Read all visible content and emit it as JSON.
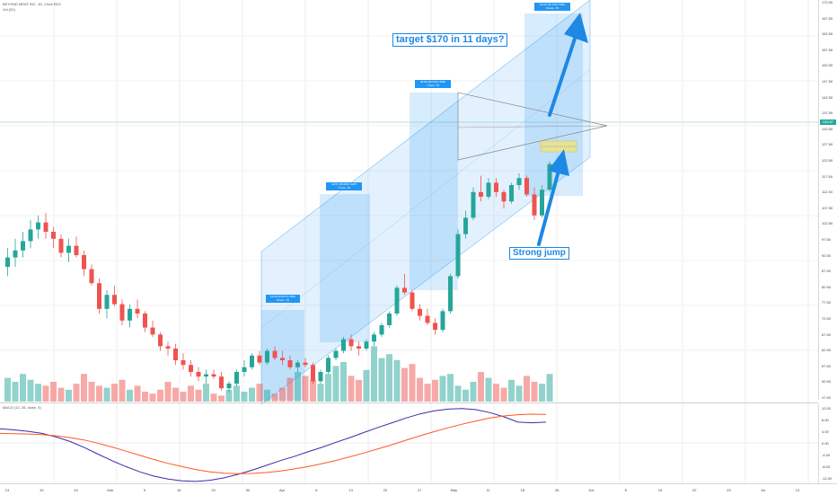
{
  "header": {
    "symbol_line": "BEYOND MEAT INC, 1D, Cboe BZX",
    "volume_line": "Vol (20)",
    "macd_line": "MACD (12, 26, close, 9)"
  },
  "annotations": {
    "target": "target $170 in 11 days?",
    "jump": "Strong jump"
  },
  "measure_labels": [
    {
      "line1": "18.52 (44.87%) 1852",
      "line2": "8 bars, 7D"
    },
    {
      "line1": "42.87 (66.28%) 4287",
      "line2": "7 bars, 7D"
    },
    {
      "line1": "36.80 (46.04%) 3680",
      "line2": "7 bars, 7D"
    },
    {
      "line1": "52.92 (46.13%) 5292",
      "line2": "8 bars, 7D"
    }
  ],
  "price_axis": [
    "172.00",
    "167.50",
    "162.50",
    "157.50",
    "152.50",
    "147.50",
    "142.50",
    "137.50",
    "132.50",
    "127.50",
    "122.50",
    "117.50",
    "112.50",
    "107.50",
    "102.50",
    "97.50",
    "92.50",
    "87.50",
    "82.50",
    "77.50",
    "72.50",
    "67.50",
    "62.50",
    "57.50",
    "52.50",
    "47.50"
  ],
  "current_price": "136.87",
  "macd_axis": [
    "12.00",
    "8.00",
    "4.00",
    "0.00",
    "-4.00",
    "-8.00",
    "-12.00"
  ],
  "time_axis": [
    "13",
    "19",
    "24",
    "Mar",
    "9",
    "16",
    "23",
    "30",
    "Apr",
    "6",
    "13",
    "20",
    "27",
    "May",
    "11",
    "18",
    "26",
    "Jun",
    "8",
    "15",
    "22",
    "29",
    "Jul",
    "13"
  ],
  "colors": {
    "up": "#26a69a",
    "down": "#ef5350",
    "channel": "#2196f3",
    "macd": "#3f2aa8",
    "signal": "#ff5722"
  },
  "candles": [
    [
      80,
      88,
      76,
      84
    ],
    [
      84,
      92,
      80,
      87
    ],
    [
      87,
      95,
      84,
      91
    ],
    [
      91,
      100,
      88,
      96
    ],
    [
      96,
      102,
      92,
      99
    ],
    [
      99,
      103,
      92,
      95
    ],
    [
      95,
      97,
      88,
      92
    ],
    [
      92,
      94,
      84,
      86
    ],
    [
      86,
      92,
      82,
      89
    ],
    [
      89,
      93,
      84,
      85
    ],
    [
      85,
      87,
      76,
      79
    ],
    [
      79,
      81,
      72,
      73
    ],
    [
      73,
      75,
      60,
      62
    ],
    [
      62,
      70,
      58,
      68
    ],
    [
      68,
      72,
      63,
      64
    ],
    [
      64,
      66,
      55,
      57
    ],
    [
      57,
      64,
      54,
      62
    ],
    [
      62,
      66,
      58,
      60
    ],
    [
      60,
      61,
      52,
      54
    ],
    [
      54,
      57,
      50,
      51
    ],
    [
      51,
      52,
      44,
      46
    ],
    [
      46,
      48,
      42,
      45
    ],
    [
      45,
      47,
      38,
      40
    ],
    [
      40,
      43,
      36,
      38
    ],
    [
      38,
      40,
      33,
      35
    ],
    [
      35,
      37,
      31,
      33
    ],
    [
      33,
      36,
      30,
      34
    ],
    [
      34,
      36,
      32,
      33
    ],
    [
      33,
      35,
      27,
      28
    ],
    [
      28,
      31,
      26,
      30
    ],
    [
      30,
      36,
      29,
      35
    ],
    [
      35,
      40,
      33,
      37
    ],
    [
      37,
      43,
      36,
      42
    ],
    [
      42,
      44,
      38,
      39
    ],
    [
      39,
      45,
      38,
      44
    ],
    [
      44,
      46,
      40,
      41
    ],
    [
      41,
      44,
      38,
      40
    ],
    [
      40,
      42,
      36,
      37
    ],
    [
      37,
      40,
      35,
      39
    ],
    [
      39,
      41,
      37,
      38
    ],
    [
      38,
      39,
      30,
      31
    ],
    [
      31,
      36,
      30,
      35
    ],
    [
      35,
      42,
      34,
      41
    ],
    [
      41,
      45,
      40,
      44
    ],
    [
      44,
      50,
      43,
      49
    ],
    [
      49,
      51,
      44,
      46
    ],
    [
      46,
      48,
      42,
      45
    ],
    [
      45,
      49,
      44,
      48
    ],
    [
      48,
      52,
      46,
      51
    ],
    [
      51,
      56,
      50,
      55
    ],
    [
      55,
      61,
      54,
      60
    ],
    [
      60,
      72,
      59,
      71
    ],
    [
      71,
      77,
      68,
      69
    ],
    [
      69,
      70,
      61,
      62
    ],
    [
      62,
      64,
      57,
      59
    ],
    [
      59,
      62,
      55,
      56
    ],
    [
      56,
      58,
      51,
      53
    ],
    [
      53,
      62,
      52,
      61
    ],
    [
      61,
      77,
      60,
      76
    ],
    [
      76,
      96,
      75,
      94
    ],
    [
      94,
      104,
      92,
      101
    ],
    [
      101,
      114,
      100,
      112
    ],
    [
      112,
      119,
      108,
      110
    ],
    [
      110,
      118,
      109,
      116
    ],
    [
      116,
      118,
      110,
      112
    ],
    [
      112,
      113,
      105,
      108
    ],
    [
      108,
      116,
      107,
      115
    ],
    [
      115,
      120,
      113,
      118
    ],
    [
      118,
      119,
      110,
      111
    ],
    [
      111,
      114,
      100,
      102
    ],
    [
      102,
      115,
      101,
      113
    ],
    [
      113,
      125,
      112,
      124
    ]
  ],
  "volumes": [
    12,
    10,
    14,
    11,
    9,
    8,
    10,
    7,
    6,
    9,
    14,
    10,
    8,
    7,
    9,
    11,
    6,
    8,
    5,
    4,
    6,
    10,
    7,
    5,
    8,
    6,
    9,
    4,
    3,
    6,
    8,
    5,
    7,
    9,
    6,
    4,
    7,
    12,
    15,
    13,
    11,
    9,
    14,
    18,
    20,
    13,
    11,
    16,
    28,
    22,
    24,
    21,
    17,
    19,
    12,
    9,
    11,
    13,
    14,
    8,
    6,
    10,
    15,
    12,
    9,
    7,
    11,
    8,
    13,
    10,
    9,
    14
  ],
  "macd": [
    4.8,
    4.4,
    3.9,
    3.2,
    2.0,
    0.5,
    -1.5,
    -3.8,
    -6.0,
    -8.0,
    -9.8,
    -11.2,
    -12.2,
    -12.8,
    -13.0,
    -12.6,
    -11.8,
    -10.6,
    -9.2,
    -7.6,
    -6.0,
    -4.6,
    -3.0,
    -1.5,
    0.2,
    1.8,
    3.5,
    5.2,
    6.8,
    8.4,
    9.8,
    10.8,
    11.4,
    11.6,
    11.2,
    10.2,
    8.8,
    7.0,
    6.8,
    7.0
  ],
  "signal": [
    3.2,
    3.1,
    3.0,
    2.8,
    2.4,
    1.8,
    1.0,
    -0.1,
    -1.4,
    -2.8,
    -4.2,
    -5.6,
    -6.9,
    -8.0,
    -9.0,
    -9.8,
    -10.2,
    -10.4,
    -10.3,
    -10.0,
    -9.5,
    -8.8,
    -8.0,
    -7.0,
    -5.9,
    -4.7,
    -3.4,
    -2.0,
    -0.6,
    0.9,
    2.4,
    3.8,
    5.1,
    6.3,
    7.4,
    8.4,
    9.1,
    9.5,
    9.7,
    9.6
  ]
}
